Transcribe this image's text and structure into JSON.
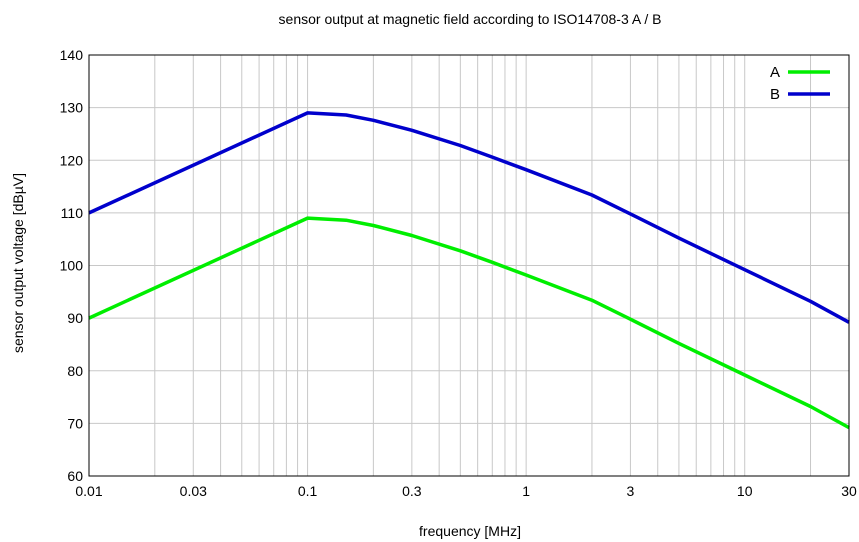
{
  "chart_data": {
    "type": "line",
    "title": "sensor output at magnetic field according to ISO14708-3 A / B",
    "xlabel": "frequency [MHz]",
    "ylabel": "sensor output voltage [dBµV]",
    "x_scale": "log",
    "xlim": [
      0.01,
      30
    ],
    "ylim": [
      60,
      140
    ],
    "x_ticks": [
      0.01,
      0.03,
      0.1,
      0.3,
      1,
      3,
      10,
      30
    ],
    "x_tick_labels": [
      "0.01",
      "0.03",
      "0.1",
      "0.3",
      "1",
      "3",
      "10",
      "30"
    ],
    "y_ticks": [
      60,
      70,
      80,
      90,
      100,
      110,
      120,
      130,
      140
    ],
    "y_tick_labels": [
      "60",
      "70",
      "80",
      "90",
      "100",
      "110",
      "120",
      "130",
      "140"
    ],
    "grid": true,
    "legend_position": "top-right",
    "series": [
      {
        "name": "A",
        "color": "#00ee00",
        "x": [
          0.01,
          0.1,
          0.15,
          0.2,
          0.3,
          0.5,
          0.7,
          1,
          2,
          3,
          5,
          10,
          20,
          30
        ],
        "y": [
          90,
          109,
          108.6,
          107.6,
          105.7,
          102.8,
          100.6,
          98.2,
          93.4,
          89.8,
          85.2,
          79.2,
          73.2,
          69.2
        ]
      },
      {
        "name": "B",
        "color": "#0000cc",
        "x": [
          0.01,
          0.1,
          0.15,
          0.2,
          0.3,
          0.5,
          0.7,
          1,
          2,
          3,
          5,
          10,
          20,
          30
        ],
        "y": [
          110,
          129,
          128.6,
          127.6,
          125.7,
          122.8,
          120.6,
          118.2,
          113.4,
          109.8,
          105.2,
          99.2,
          93.2,
          89.2
        ]
      }
    ]
  }
}
